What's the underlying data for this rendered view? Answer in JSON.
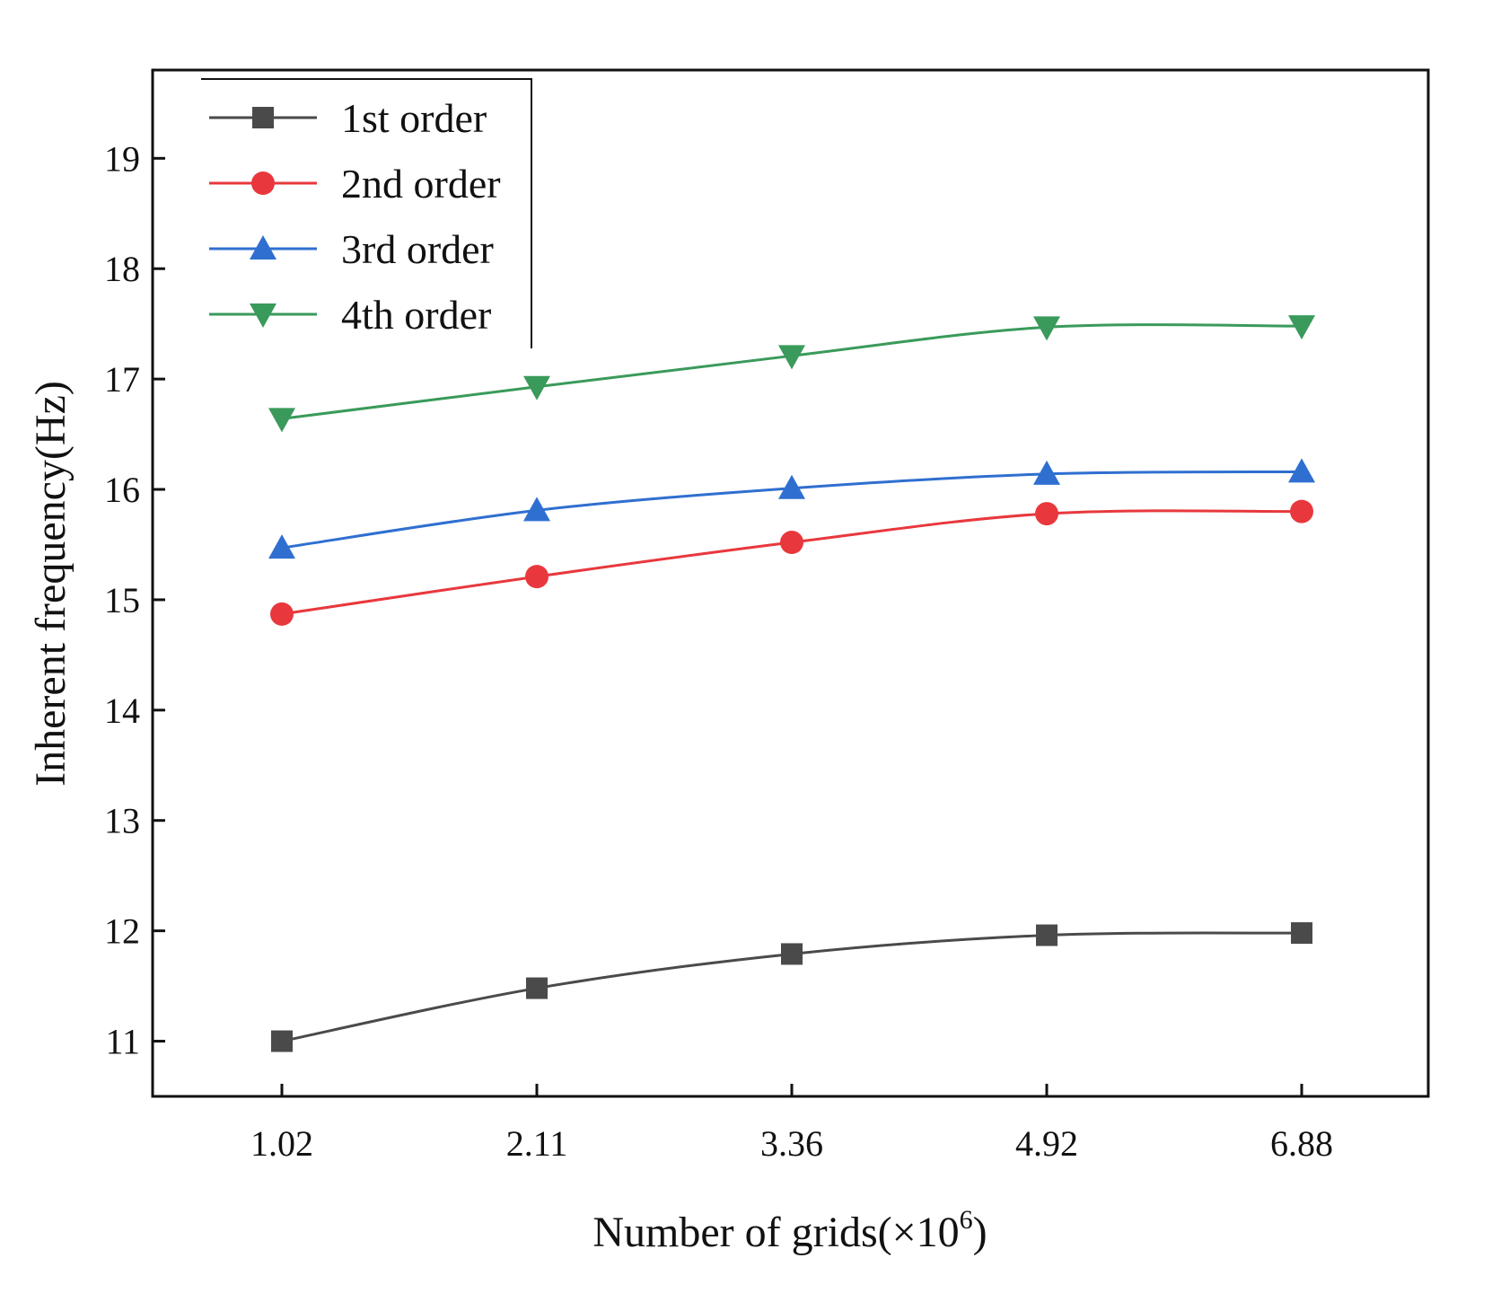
{
  "chart_data": {
    "type": "line",
    "title": "",
    "xlabel": "Number of grids(×10",
    "xlabel_sup": "6",
    "xlabel_close": ")",
    "ylabel": "Inherent frequency(Hz)",
    "categories": [
      "1.02",
      "2.11",
      "3.36",
      "4.92",
      "6.88"
    ],
    "ylim": [
      10.5,
      19.8
    ],
    "yticks": [
      11,
      12,
      13,
      14,
      15,
      16,
      17,
      18,
      19
    ],
    "grid": false,
    "legend_position": "top-left",
    "series": [
      {
        "name": "1st order",
        "marker": "square",
        "color": "#4a4a4a",
        "values": [
          11.0,
          11.48,
          11.79,
          11.96,
          11.98
        ]
      },
      {
        "name": "2nd order",
        "marker": "circle",
        "color": "#e8383d",
        "values": [
          14.87,
          15.21,
          15.52,
          15.78,
          15.8
        ]
      },
      {
        "name": "3rd order",
        "marker": "triangle-up",
        "color": "#2f6fd0",
        "values": [
          15.47,
          15.81,
          16.01,
          16.14,
          16.16
        ]
      },
      {
        "name": "4th order",
        "marker": "triangle-down",
        "color": "#3a9a5b",
        "values": [
          16.64,
          16.93,
          17.21,
          17.47,
          17.48
        ]
      }
    ]
  }
}
